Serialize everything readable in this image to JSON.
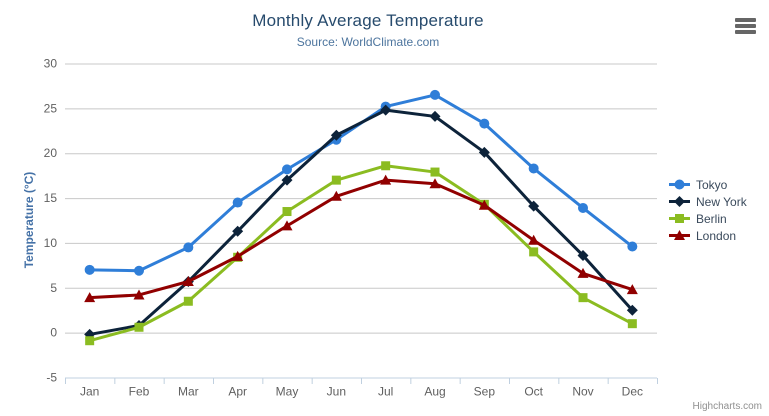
{
  "header": {
    "title": "Monthly Average Temperature",
    "subtitle": "Source: WorldClimate.com"
  },
  "credits": "Highcharts.com",
  "icons": {
    "menu": "hamburger-icon"
  },
  "colors": {
    "grid": "#C8C8C8",
    "axis_line": "#C0D0E0",
    "title": "#274b6d",
    "subtitle": "#4d759e",
    "axis_label": "#606060",
    "yaxis_title": "#4572a7",
    "legend_text": "#3a4a5c",
    "credits": "#909090",
    "menu": "#666666"
  },
  "chart_data": {
    "type": "line",
    "title": "Monthly Average Temperature",
    "subtitle": "Source: WorldClimate.com",
    "xlabel": "",
    "ylabel": "Temperature (°C)",
    "ylim": [
      -5,
      30
    ],
    "ytick_step": 5,
    "grid": true,
    "legend_position": "right",
    "categories": [
      "Jan",
      "Feb",
      "Mar",
      "Apr",
      "May",
      "Jun",
      "Jul",
      "Aug",
      "Sep",
      "Oct",
      "Nov",
      "Dec"
    ],
    "series": [
      {
        "name": "Tokyo",
        "color": "#2f7ed8",
        "marker": "circle",
        "values": [
          7.0,
          6.9,
          9.5,
          14.5,
          18.2,
          21.5,
          25.2,
          26.5,
          23.3,
          18.3,
          13.9,
          9.6
        ]
      },
      {
        "name": "New York",
        "color": "#0d233a",
        "marker": "diamond",
        "values": [
          -0.2,
          0.8,
          5.7,
          11.3,
          17.0,
          22.0,
          24.8,
          24.1,
          20.1,
          14.1,
          8.6,
          2.5
        ]
      },
      {
        "name": "Berlin",
        "color": "#8bbc21",
        "marker": "square",
        "values": [
          -0.9,
          0.6,
          3.5,
          8.4,
          13.5,
          17.0,
          18.6,
          17.9,
          14.3,
          9.0,
          3.9,
          1.0
        ]
      },
      {
        "name": "London",
        "color": "#910000",
        "marker": "triangle",
        "values": [
          3.9,
          4.2,
          5.7,
          8.5,
          11.9,
          15.2,
          17.0,
          16.6,
          14.2,
          10.3,
          6.6,
          4.8
        ]
      }
    ]
  }
}
